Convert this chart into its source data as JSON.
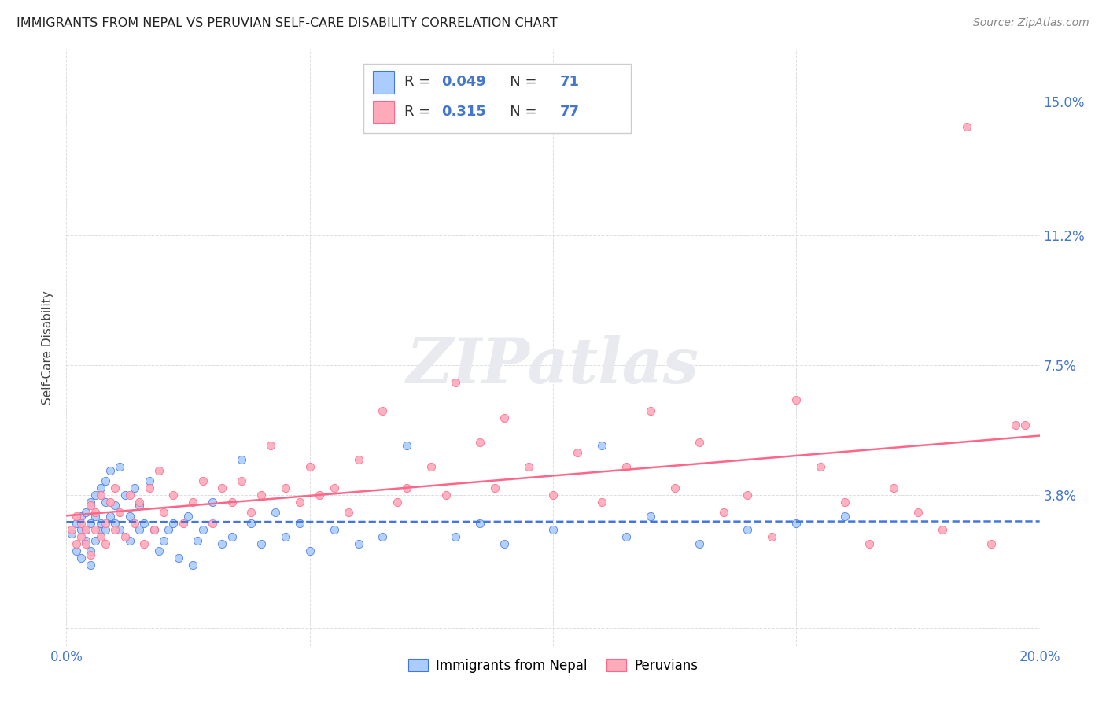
{
  "title": "IMMIGRANTS FROM NEPAL VS PERUVIAN SELF-CARE DISABILITY CORRELATION CHART",
  "source": "Source: ZipAtlas.com",
  "ylabel": "Self-Care Disability",
  "xlim": [
    0.0,
    0.2
  ],
  "ylim": [
    -0.005,
    0.165
  ],
  "legend_label_1": "Immigrants from Nepal",
  "legend_label_2": "Peruvians",
  "R1": "0.049",
  "N1": "71",
  "R2": "0.315",
  "N2": "77",
  "color_nepal": "#aaccff",
  "color_peru": "#ffaabb",
  "line_color_nepal": "#4477dd",
  "line_color_peru": "#ff6688",
  "nepal_x": [
    0.001,
    0.002,
    0.002,
    0.003,
    0.003,
    0.003,
    0.004,
    0.004,
    0.004,
    0.005,
    0.005,
    0.005,
    0.005,
    0.006,
    0.006,
    0.006,
    0.007,
    0.007,
    0.007,
    0.008,
    0.008,
    0.008,
    0.009,
    0.009,
    0.01,
    0.01,
    0.011,
    0.011,
    0.012,
    0.013,
    0.013,
    0.014,
    0.015,
    0.015,
    0.016,
    0.017,
    0.018,
    0.019,
    0.02,
    0.021,
    0.022,
    0.023,
    0.025,
    0.026,
    0.027,
    0.028,
    0.03,
    0.032,
    0.034,
    0.036,
    0.038,
    0.04,
    0.043,
    0.045,
    0.048,
    0.05,
    0.055,
    0.06,
    0.065,
    0.07,
    0.08,
    0.085,
    0.09,
    0.1,
    0.11,
    0.115,
    0.12,
    0.13,
    0.14,
    0.15,
    0.16
  ],
  "nepal_y": [
    0.027,
    0.03,
    0.022,
    0.028,
    0.032,
    0.02,
    0.033,
    0.025,
    0.028,
    0.018,
    0.036,
    0.03,
    0.022,
    0.038,
    0.025,
    0.032,
    0.04,
    0.028,
    0.03,
    0.036,
    0.042,
    0.028,
    0.032,
    0.045,
    0.03,
    0.035,
    0.046,
    0.028,
    0.038,
    0.032,
    0.025,
    0.04,
    0.035,
    0.028,
    0.03,
    0.042,
    0.028,
    0.022,
    0.025,
    0.028,
    0.03,
    0.02,
    0.032,
    0.018,
    0.025,
    0.028,
    0.036,
    0.024,
    0.026,
    0.048,
    0.03,
    0.024,
    0.033,
    0.026,
    0.03,
    0.022,
    0.028,
    0.024,
    0.026,
    0.052,
    0.026,
    0.03,
    0.024,
    0.028,
    0.052,
    0.026,
    0.032,
    0.024,
    0.028,
    0.03,
    0.032
  ],
  "peru_x": [
    0.001,
    0.002,
    0.002,
    0.003,
    0.003,
    0.004,
    0.004,
    0.005,
    0.005,
    0.006,
    0.006,
    0.007,
    0.007,
    0.008,
    0.008,
    0.009,
    0.01,
    0.01,
    0.011,
    0.012,
    0.013,
    0.014,
    0.015,
    0.016,
    0.017,
    0.018,
    0.019,
    0.02,
    0.022,
    0.024,
    0.026,
    0.028,
    0.03,
    0.032,
    0.034,
    0.036,
    0.038,
    0.04,
    0.042,
    0.045,
    0.048,
    0.05,
    0.052,
    0.055,
    0.058,
    0.06,
    0.065,
    0.068,
    0.07,
    0.075,
    0.078,
    0.08,
    0.085,
    0.088,
    0.09,
    0.095,
    0.1,
    0.105,
    0.11,
    0.115,
    0.12,
    0.125,
    0.13,
    0.135,
    0.14,
    0.145,
    0.15,
    0.155,
    0.16,
    0.165,
    0.17,
    0.175,
    0.18,
    0.185,
    0.19,
    0.195,
    0.197
  ],
  "peru_y": [
    0.028,
    0.024,
    0.032,
    0.026,
    0.03,
    0.028,
    0.024,
    0.035,
    0.021,
    0.028,
    0.033,
    0.026,
    0.038,
    0.03,
    0.024,
    0.036,
    0.028,
    0.04,
    0.033,
    0.026,
    0.038,
    0.03,
    0.036,
    0.024,
    0.04,
    0.028,
    0.045,
    0.033,
    0.038,
    0.03,
    0.036,
    0.042,
    0.03,
    0.04,
    0.036,
    0.042,
    0.033,
    0.038,
    0.052,
    0.04,
    0.036,
    0.046,
    0.038,
    0.04,
    0.033,
    0.048,
    0.062,
    0.036,
    0.04,
    0.046,
    0.038,
    0.07,
    0.053,
    0.04,
    0.06,
    0.046,
    0.038,
    0.05,
    0.036,
    0.046,
    0.062,
    0.04,
    0.053,
    0.033,
    0.038,
    0.026,
    0.065,
    0.046,
    0.036,
    0.024,
    0.04,
    0.033,
    0.028,
    0.143,
    0.024,
    0.058,
    0.058
  ],
  "watermark_color": "#e8eaf0",
  "background_color": "#ffffff",
  "grid_color": "#dddddd"
}
